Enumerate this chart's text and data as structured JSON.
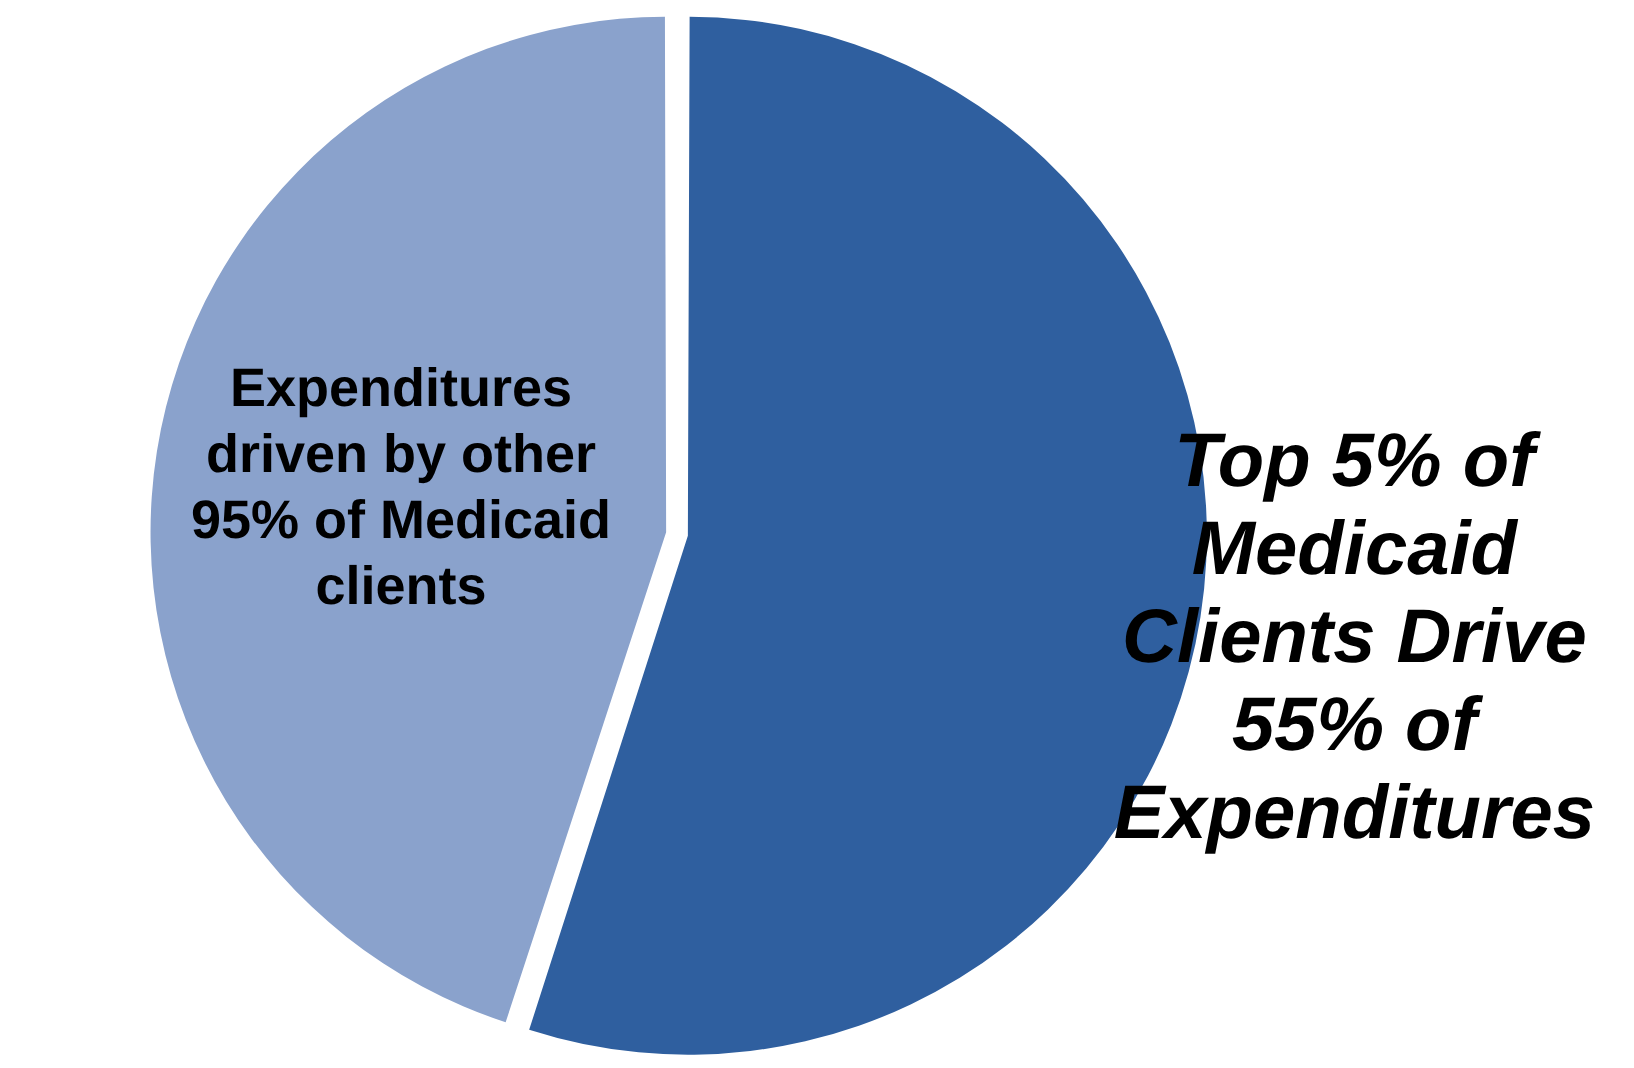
{
  "chart_data": {
    "type": "pie",
    "categories": [
      "Top 5% of Medicaid Clients Drive 55% of Expenditures",
      "Expenditures driven by other 95% of Medicaid clients"
    ],
    "values": [
      55,
      45
    ],
    "colors": [
      "#2f5f9f",
      "#8aa2cc"
    ],
    "legend": false
  }
}
